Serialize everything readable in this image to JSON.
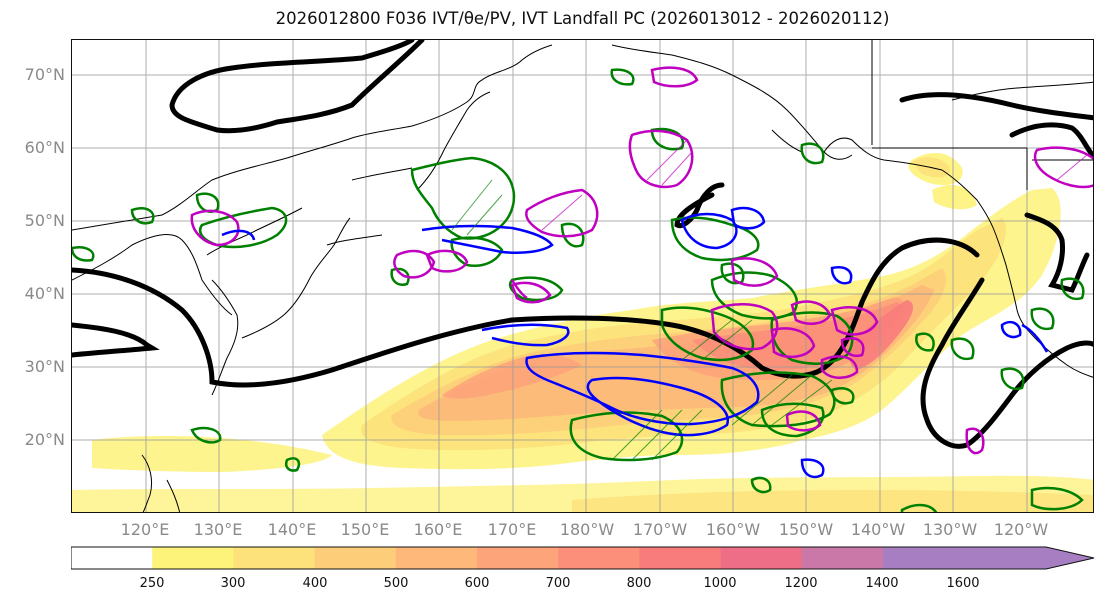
{
  "title": "2026012800 F036 IVT/θe/PV, IVT Landfall PC (2026013012 - 2026020112)",
  "map": {
    "lat_labels": [
      "70°N",
      "60°N",
      "50°N",
      "40°N",
      "30°N",
      "20°N"
    ],
    "lon_labels": [
      "120°E",
      "130°E",
      "140°E",
      "150°E",
      "160°E",
      "170°E",
      "180°W",
      "170°W",
      "160°W",
      "150°W",
      "140°W",
      "130°W",
      "120°W"
    ],
    "colors": {
      "theta_e_contour": "#000000",
      "pv_positive_contour": "#008000",
      "pv_negative_contour": "#c000c0",
      "landfall_contour": "#0000ff",
      "coastline": "#000000",
      "gridline": "#9a9a9a"
    }
  },
  "colorbar": {
    "ticks": [
      "250",
      "300",
      "400",
      "500",
      "600",
      "700",
      "800",
      "1000",
      "1200",
      "1400",
      "1600"
    ],
    "colors": [
      "#ffffff",
      "#fdf27a",
      "#fde17a",
      "#fdcd7a",
      "#fdb87a",
      "#fda47a",
      "#fc8f7a",
      "#f97c7c",
      "#ee6e88",
      "#c978a8",
      "#a87ec2"
    ]
  }
}
